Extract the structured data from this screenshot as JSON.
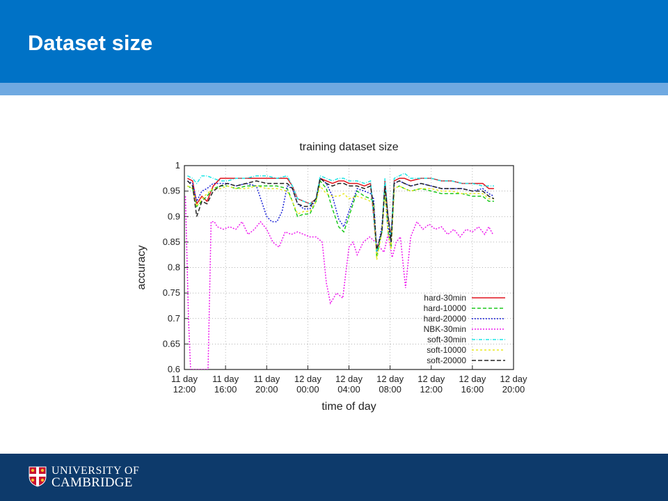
{
  "slide": {
    "title": "Dataset size"
  },
  "footer": {
    "university_line1": "UNIVERSITY OF",
    "university_line2": "CAMBRIDGE"
  },
  "colors": {
    "header": "#0072c6",
    "stripe": "#6fa9e1",
    "footer": "#0d3a6b"
  },
  "chart_data": {
    "type": "line",
    "title": "training dataset size",
    "xlabel": "time of day",
    "ylabel": "accuracy",
    "ylim": [
      0.6,
      1.0
    ],
    "xlim": [
      12,
      44
    ],
    "yticks": [
      "1",
      "0.95",
      "0.9",
      "0.85",
      "0.8",
      "0.75",
      "0.7",
      "0.65",
      "0.6"
    ],
    "xticks": [
      {
        "value": 12,
        "line1": "11 day",
        "line2": "12:00"
      },
      {
        "value": 16,
        "line1": "11 day",
        "line2": "16:00"
      },
      {
        "value": 20,
        "line1": "11 day",
        "line2": "20:00"
      },
      {
        "value": 24,
        "line1": "12 day",
        "line2": "00:00"
      },
      {
        "value": 28,
        "line1": "12 day",
        "line2": "04:00"
      },
      {
        "value": 32,
        "line1": "12 day",
        "line2": "08:00"
      },
      {
        "value": 36,
        "line1": "12 day",
        "line2": "12:00"
      },
      {
        "value": 40,
        "line1": "12 day",
        "line2": "16:00"
      },
      {
        "value": 44,
        "line1": "12 day",
        "line2": "20:00"
      }
    ],
    "grid": true,
    "legend": "bottom-right",
    "series": [
      {
        "name": "hard-30min",
        "color": "#e0141e",
        "dash": "",
        "x": [
          12.3,
          12.8,
          13.2,
          13.7,
          14.2,
          14.8,
          15.5,
          16.2,
          17,
          18,
          19,
          20,
          21,
          22,
          22.5,
          23,
          23.6,
          24.2,
          24.8,
          25.2,
          25.8,
          26.4,
          27,
          27.5,
          28,
          28.8,
          29.5,
          30.1,
          30.4,
          30.7,
          31.2,
          31.5,
          31.8,
          32.1,
          32.4,
          32.9,
          33.4,
          34,
          35,
          36,
          37,
          38,
          39,
          40,
          41,
          41.6,
          42.1
        ],
        "y": [
          0.975,
          0.97,
          0.925,
          0.94,
          0.93,
          0.96,
          0.975,
          0.975,
          0.975,
          0.975,
          0.975,
          0.975,
          0.975,
          0.975,
          0.96,
          0.935,
          0.93,
          0.925,
          0.935,
          0.975,
          0.97,
          0.965,
          0.97,
          0.97,
          0.965,
          0.965,
          0.96,
          0.965,
          0.9,
          0.83,
          0.87,
          0.97,
          0.9,
          0.86,
          0.97,
          0.975,
          0.975,
          0.97,
          0.975,
          0.975,
          0.97,
          0.97,
          0.965,
          0.965,
          0.965,
          0.955,
          0.955
        ]
      },
      {
        "name": "hard-10000",
        "color": "#1ec81e",
        "dash": "5,3",
        "x": [
          12.3,
          12.8,
          13.2,
          13.7,
          14.2,
          14.8,
          15.5,
          16.2,
          17,
          18,
          19,
          20,
          21,
          22,
          22.5,
          23,
          23.6,
          24.2,
          24.8,
          25.2,
          25.8,
          26.4,
          27,
          27.5,
          28,
          28.8,
          29.5,
          30.1,
          30.4,
          30.7,
          31.2,
          31.5,
          31.8,
          32.1,
          32.4,
          32.9,
          33.4,
          34,
          35,
          36,
          37,
          38,
          39,
          40,
          41,
          41.6,
          42.1
        ],
        "y": [
          0.96,
          0.955,
          0.92,
          0.93,
          0.94,
          0.955,
          0.96,
          0.96,
          0.955,
          0.96,
          0.96,
          0.96,
          0.96,
          0.955,
          0.93,
          0.9,
          0.905,
          0.905,
          0.93,
          0.97,
          0.955,
          0.915,
          0.88,
          0.87,
          0.9,
          0.95,
          0.94,
          0.935,
          0.93,
          0.82,
          0.87,
          0.95,
          0.87,
          0.84,
          0.955,
          0.96,
          0.955,
          0.95,
          0.955,
          0.95,
          0.945,
          0.945,
          0.945,
          0.94,
          0.94,
          0.93,
          0.93
        ]
      },
      {
        "name": "hard-20000",
        "color": "#1a22d6",
        "dash": "2,2",
        "x": [
          12.3,
          12.8,
          13.2,
          13.7,
          14.2,
          14.8,
          15.5,
          16.2,
          17,
          18,
          19,
          20,
          20.5,
          21,
          21.5,
          22,
          22.5,
          23,
          23.6,
          24.2,
          24.8,
          25.2,
          25.8,
          26.4,
          27,
          27.5,
          28,
          28.8,
          29.5,
          30.1,
          30.4,
          30.7,
          31.2,
          31.5,
          31.8,
          32.1,
          32.4,
          32.9,
          33.4,
          34,
          35,
          36,
          37,
          38,
          39,
          40,
          41,
          41.6,
          42.1
        ],
        "y": [
          0.97,
          0.965,
          0.93,
          0.95,
          0.955,
          0.965,
          0.965,
          0.965,
          0.96,
          0.965,
          0.96,
          0.9,
          0.89,
          0.89,
          0.91,
          0.96,
          0.955,
          0.925,
          0.915,
          0.915,
          0.935,
          0.975,
          0.965,
          0.94,
          0.895,
          0.88,
          0.91,
          0.955,
          0.95,
          0.945,
          0.935,
          0.83,
          0.88,
          0.96,
          0.88,
          0.85,
          0.965,
          0.97,
          0.965,
          0.96,
          0.965,
          0.96,
          0.955,
          0.955,
          0.955,
          0.95,
          0.955,
          0.945,
          0.94
        ]
      },
      {
        "name": "NBK-30min",
        "color": "#ee1aee",
        "dash": "2,2",
        "x": [
          12.1,
          12.4,
          12.6,
          14.3,
          14.6,
          14.9,
          15.2,
          15.8,
          16.4,
          17,
          17.6,
          18.2,
          18.8,
          19.4,
          20,
          20.6,
          21.2,
          21.8,
          22.4,
          23,
          23.6,
          24.2,
          24.8,
          25.4,
          25.8,
          26.2,
          26.8,
          27.4,
          28,
          28.4,
          28.8,
          29.4,
          30,
          30.6,
          31,
          31.4,
          31.8,
          32.2,
          32.6,
          33,
          33.5,
          34,
          34.6,
          35.2,
          35.8,
          36.4,
          37,
          37.6,
          38.2,
          38.8,
          39.4,
          40,
          40.6,
          41.2,
          41.6,
          42
        ],
        "y": [
          0.94,
          0.7,
          0.6,
          0.6,
          0.89,
          0.89,
          0.88,
          0.875,
          0.88,
          0.875,
          0.89,
          0.865,
          0.875,
          0.89,
          0.875,
          0.85,
          0.84,
          0.87,
          0.865,
          0.87,
          0.865,
          0.86,
          0.86,
          0.85,
          0.77,
          0.73,
          0.75,
          0.74,
          0.84,
          0.85,
          0.825,
          0.85,
          0.86,
          0.85,
          0.84,
          0.83,
          0.865,
          0.82,
          0.85,
          0.86,
          0.76,
          0.86,
          0.89,
          0.875,
          0.885,
          0.875,
          0.88,
          0.865,
          0.875,
          0.86,
          0.875,
          0.87,
          0.88,
          0.865,
          0.88,
          0.865
        ]
      },
      {
        "name": "soft-30min",
        "color": "#1ee6e6",
        "dash": "5,2,1,2",
        "x": [
          12.3,
          12.8,
          13.2,
          13.7,
          14.2,
          14.8,
          15.5,
          16.2,
          17,
          18,
          19,
          20,
          21,
          22,
          22.5,
          23,
          23.6,
          24.2,
          24.8,
          25.2,
          25.8,
          26.4,
          27,
          27.5,
          28,
          28.8,
          29.5,
          30.1,
          30.4,
          30.7,
          31.2,
          31.5,
          31.8,
          32.1,
          32.4,
          32.9,
          33.4,
          34,
          35,
          36,
          37,
          38,
          39,
          40,
          41,
          41.6,
          42.1
        ],
        "y": [
          0.98,
          0.975,
          0.965,
          0.98,
          0.98,
          0.975,
          0.97,
          0.97,
          0.975,
          0.975,
          0.98,
          0.98,
          0.975,
          0.98,
          0.96,
          0.935,
          0.93,
          0.925,
          0.935,
          0.98,
          0.975,
          0.97,
          0.975,
          0.975,
          0.97,
          0.97,
          0.965,
          0.97,
          0.9,
          0.83,
          0.87,
          0.975,
          0.9,
          0.86,
          0.975,
          0.98,
          0.985,
          0.975,
          0.975,
          0.975,
          0.97,
          0.97,
          0.965,
          0.965,
          0.96,
          0.96,
          0.96
        ]
      },
      {
        "name": "soft-10000",
        "color": "#e8e820",
        "dash": "3,3",
        "x": [
          12.3,
          12.8,
          13.2,
          13.7,
          14.2,
          14.8,
          15.5,
          16.2,
          17,
          18,
          19,
          20,
          21,
          22,
          22.5,
          23,
          23.6,
          24.2,
          24.8,
          25.2,
          25.8,
          26.4,
          27,
          27.5,
          28,
          28.8,
          29.5,
          30.1,
          30.4,
          30.7,
          31.2,
          31.5,
          31.8,
          32.1,
          32.4,
          32.9,
          33.4,
          34,
          35,
          36,
          37,
          38,
          39,
          40,
          41,
          41.6,
          42.1
        ],
        "y": [
          0.96,
          0.955,
          0.92,
          0.935,
          0.945,
          0.955,
          0.955,
          0.96,
          0.955,
          0.955,
          0.96,
          0.955,
          0.955,
          0.95,
          0.93,
          0.905,
          0.91,
          0.91,
          0.93,
          0.96,
          0.945,
          0.94,
          0.94,
          0.945,
          0.935,
          0.94,
          0.935,
          0.93,
          0.925,
          0.815,
          0.87,
          0.95,
          0.87,
          0.835,
          0.955,
          0.96,
          0.955,
          0.95,
          0.955,
          0.955,
          0.95,
          0.95,
          0.945,
          0.945,
          0.945,
          0.935,
          0.935
        ]
      },
      {
        "name": "soft-20000",
        "color": "#222222",
        "dash": "6,3",
        "x": [
          12.3,
          12.8,
          13.2,
          13.7,
          14.2,
          14.8,
          15.5,
          16.2,
          17,
          18,
          19,
          20,
          21,
          22,
          22.5,
          23,
          23.6,
          24.2,
          24.8,
          25.2,
          25.8,
          26.4,
          27,
          27.5,
          28,
          28.8,
          29.5,
          30.1,
          30.4,
          30.7,
          31.2,
          31.5,
          31.8,
          32.1,
          32.4,
          32.9,
          33.4,
          34,
          35,
          36,
          37,
          38,
          39,
          40,
          41,
          41.6,
          42.1
        ],
        "y": [
          0.97,
          0.96,
          0.9,
          0.93,
          0.925,
          0.95,
          0.96,
          0.965,
          0.96,
          0.965,
          0.97,
          0.965,
          0.965,
          0.965,
          0.955,
          0.925,
          0.92,
          0.92,
          0.935,
          0.975,
          0.965,
          0.96,
          0.965,
          0.965,
          0.96,
          0.96,
          0.955,
          0.96,
          0.92,
          0.835,
          0.87,
          0.96,
          0.9,
          0.85,
          0.965,
          0.97,
          0.965,
          0.96,
          0.965,
          0.96,
          0.955,
          0.955,
          0.955,
          0.95,
          0.95,
          0.94,
          0.935
        ]
      }
    ]
  }
}
